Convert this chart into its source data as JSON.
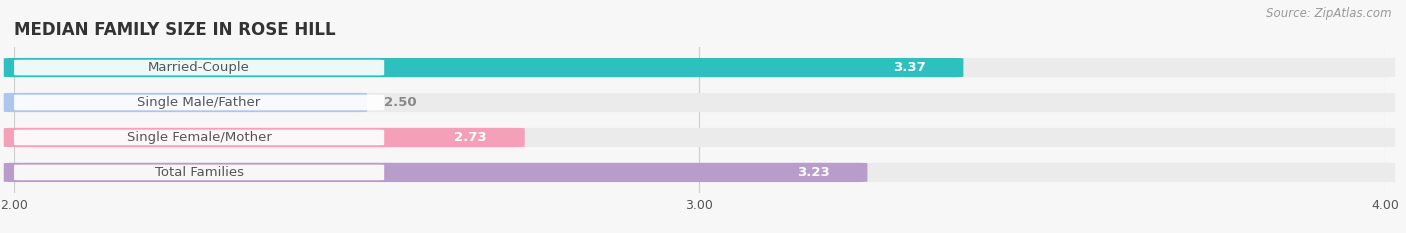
{
  "title": "MEDIAN FAMILY SIZE IN ROSE HILL",
  "source": "Source: ZipAtlas.com",
  "categories": [
    "Married-Couple",
    "Single Male/Father",
    "Single Female/Mother",
    "Total Families"
  ],
  "values": [
    3.37,
    2.5,
    2.73,
    3.23
  ],
  "bar_colors": [
    "#2ebfbf",
    "#adc6ed",
    "#f4a0b8",
    "#b89cca"
  ],
  "bar_bg_color": "#ebebeb",
  "xlim": [
    2.0,
    4.0
  ],
  "xticks": [
    2.0,
    3.0,
    4.0
  ],
  "xtick_labels": [
    "2.00",
    "3.00",
    "4.00"
  ],
  "label_text_color": "#555555",
  "value_label_inside_color": "#ffffff",
  "value_label_outside_color": "#888888",
  "bar_height": 0.52,
  "background_color": "#f7f7f7",
  "title_fontsize": 12,
  "label_fontsize": 9.5,
  "value_fontsize": 9.5,
  "tick_fontsize": 9,
  "source_fontsize": 8.5,
  "inside_threshold": 0.65
}
